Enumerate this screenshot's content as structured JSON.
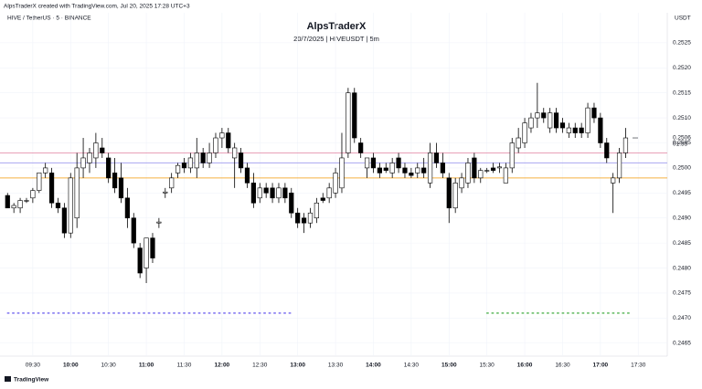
{
  "header": {
    "credit": "AlpsTraderX created with TradingView.com, Jul 20, 2025 17:28 UTC+3",
    "symbol": "HIVE / TetherUS · 5 · BINANCE",
    "currency": "USDT",
    "logo": "TradingView"
  },
  "chart_data": {
    "type": "candlestick",
    "title": "AlpsTraderX",
    "subtitle": "20/7/2025 | HIVEUSDT | 5m",
    "x": [
      550,
      555,
      560,
      565,
      570,
      575,
      580,
      585,
      590,
      595,
      600,
      605,
      610,
      615,
      620,
      625,
      630,
      635,
      640,
      645,
      650,
      655,
      660,
      665,
      670,
      675,
      680,
      685,
      690,
      695,
      700,
      705,
      710,
      715,
      720,
      725,
      730,
      735,
      740,
      745,
      750,
      755,
      760,
      765,
      770,
      775,
      780,
      785,
      790,
      795,
      800,
      805,
      810,
      815,
      820,
      825,
      830,
      835,
      840,
      845,
      850,
      855,
      860,
      865,
      870,
      875,
      880,
      885,
      890,
      895,
      900,
      905,
      910,
      915,
      920,
      925,
      930,
      935,
      940,
      945,
      950,
      955,
      960,
      965,
      970,
      975,
      980,
      985,
      990,
      995,
      1000,
      1005,
      1010,
      1015,
      1020,
      1025,
      1030,
      1035,
      1040
    ],
    "open": [
      0.24945,
      0.2492,
      0.2492,
      0.24935,
      0.2494,
      0.24955,
      0.2499,
      0.2499,
      0.2493,
      0.2492,
      0.2487,
      0.249,
      0.25,
      0.2501,
      0.2502,
      0.2504,
      0.2502,
      0.2499,
      0.2498,
      0.2494,
      0.249,
      0.2484,
      0.248,
      0.2486,
      0.2489,
      0.2495,
      0.2496,
      0.2499,
      0.2501,
      0.25,
      0.25,
      0.2503,
      0.2501,
      0.2503,
      0.2506,
      0.2507,
      0.2502,
      0.2503,
      0.25,
      0.2497,
      0.2494,
      0.2496,
      0.2496,
      0.2494,
      0.2496,
      0.2495,
      0.2491,
      0.249,
      0.2489,
      0.249,
      0.2494,
      0.2494,
      0.2495,
      0.2496,
      0.2503,
      0.2515,
      0.2505,
      0.25,
      0.2502,
      0.25,
      0.25,
      0.2499,
      0.2502,
      0.25,
      0.2499,
      0.2499,
      0.25,
      0.2497,
      0.2503,
      0.2501,
      0.2498,
      0.2492,
      0.2496,
      0.2497,
      0.2502,
      0.2498,
      0.24995,
      0.25,
      0.25,
      0.2497,
      0.25,
      0.2504,
      0.2505,
      0.2508,
      0.251,
      0.2511,
      0.2508,
      0.2511,
      0.2509,
      0.2507,
      0.2508,
      0.2508,
      0.2507,
      0.2512,
      0.251,
      0.2505,
      0.2497,
      0.2498,
      0.2503
    ],
    "high": [
      0.2495,
      0.2493,
      0.2494,
      0.2494,
      0.2496,
      0.2499,
      0.2501,
      0.25,
      0.2494,
      0.2493,
      0.2499,
      0.2503,
      0.2506,
      0.2504,
      0.2507,
      0.2506,
      0.2503,
      0.2502,
      0.2501,
      0.2496,
      0.2491,
      0.2485,
      0.2486,
      0.2487,
      0.249,
      0.2496,
      0.2499,
      0.2501,
      0.2502,
      0.2503,
      0.2506,
      0.2504,
      0.2505,
      0.2507,
      0.2508,
      0.2508,
      0.2505,
      0.2504,
      0.2501,
      0.2499,
      0.2497,
      0.2497,
      0.2497,
      0.2497,
      0.2497,
      0.2496,
      0.2492,
      0.2491,
      0.2492,
      0.2494,
      0.2495,
      0.2497,
      0.25,
      0.2507,
      0.2516,
      0.2516,
      0.2506,
      0.2502,
      0.2503,
      0.2501,
      0.2501,
      0.2502,
      0.2503,
      0.2501,
      0.25,
      0.2501,
      0.2502,
      0.2505,
      0.2505,
      0.2503,
      0.2499,
      0.2498,
      0.2499,
      0.2502,
      0.2503,
      0.25,
      0.25,
      0.2501,
      0.2501,
      0.2501,
      0.2506,
      0.2508,
      0.251,
      0.2511,
      0.2517,
      0.2512,
      0.2512,
      0.2512,
      0.251,
      0.2509,
      0.2509,
      0.2509,
      0.2513,
      0.2513,
      0.2511,
      0.2506,
      0.2499,
      0.2504,
      0.2508
    ],
    "low": [
      0.2492,
      0.2491,
      0.2491,
      0.2493,
      0.2493,
      0.2495,
      0.2498,
      0.2492,
      0.2491,
      0.2486,
      0.2486,
      0.2488,
      0.2498,
      0.2499,
      0.25,
      0.2502,
      0.2497,
      0.2495,
      0.2493,
      0.2488,
      0.2484,
      0.2478,
      0.2477,
      0.2481,
      0.2488,
      0.2494,
      0.2495,
      0.2498,
      0.2499,
      0.2499,
      0.2498,
      0.25,
      0.25,
      0.2502,
      0.2504,
      0.2503,
      0.2496,
      0.2499,
      0.2496,
      0.2492,
      0.2493,
      0.2494,
      0.2493,
      0.2493,
      0.2493,
      0.249,
      0.2488,
      0.2487,
      0.2488,
      0.2489,
      0.2493,
      0.2493,
      0.2494,
      0.2495,
      0.2502,
      0.2505,
      0.2502,
      0.2498,
      0.2499,
      0.2498,
      0.2499,
      0.2498,
      0.2499,
      0.2498,
      0.2498,
      0.2498,
      0.2498,
      0.2496,
      0.25,
      0.2498,
      0.2489,
      0.2491,
      0.2495,
      0.2496,
      0.2497,
      0.2497,
      0.2499,
      0.2499,
      0.2499,
      0.2497,
      0.2499,
      0.2503,
      0.2504,
      0.2507,
      0.2508,
      0.2509,
      0.2507,
      0.2507,
      0.2507,
      0.2506,
      0.2506,
      0.2506,
      0.2506,
      0.2509,
      0.2504,
      0.2501,
      0.2491,
      0.2497,
      0.2502
    ],
    "close": [
      0.2492,
      0.24925,
      0.24935,
      0.24935,
      0.24955,
      0.2499,
      0.25,
      0.2493,
      0.2492,
      0.2487,
      0.2498,
      0.25,
      0.2502,
      0.2503,
      0.2505,
      0.2503,
      0.2498,
      0.2496,
      0.2494,
      0.249,
      0.2485,
      0.2479,
      0.2486,
      0.2482,
      0.24892,
      0.24952,
      0.2498,
      0.25005,
      0.25,
      0.2502,
      0.2503,
      0.2501,
      0.2503,
      0.2506,
      0.2507,
      0.2504,
      0.2504,
      0.25,
      0.2497,
      0.2493,
      0.2496,
      0.2495,
      0.2494,
      0.2496,
      0.2494,
      0.2491,
      0.2489,
      0.2489,
      0.2491,
      0.2493,
      0.24935,
      0.2496,
      0.2499,
      0.2502,
      0.2515,
      0.2506,
      0.2503,
      0.2502,
      0.25,
      0.2499,
      0.24995,
      0.2501,
      0.25,
      0.2499,
      0.24985,
      0.25,
      0.2499,
      0.2503,
      0.2501,
      0.2499,
      0.2492,
      0.2497,
      0.2498,
      0.2501,
      0.2498,
      0.24995,
      0.24995,
      0.24995,
      0.25002,
      0.25,
      0.2505,
      0.2506,
      0.2509,
      0.251,
      0.2511,
      0.251,
      0.2511,
      0.2508,
      0.2508,
      0.2508,
      0.2507,
      0.2507,
      0.2512,
      0.251,
      0.2505,
      0.2502,
      0.2498,
      0.2503,
      0.2506
    ],
    "bull_color": "#ffffff",
    "bear_color": "#000000",
    "outline_color": "#000000",
    "xlim": [
      544,
      1073
    ],
    "xticks": [
      {
        "value": 570,
        "label": "09:30"
      },
      {
        "value": 600,
        "label": "10:00"
      },
      {
        "value": 630,
        "label": "10:30"
      },
      {
        "value": 660,
        "label": "11:00"
      },
      {
        "value": 690,
        "label": "11:30"
      },
      {
        "value": 720,
        "label": "12:00"
      },
      {
        "value": 750,
        "label": "12:30"
      },
      {
        "value": 780,
        "label": "13:00"
      },
      {
        "value": 810,
        "label": "13:30"
      },
      {
        "value": 840,
        "label": "14:00"
      },
      {
        "value": 870,
        "label": "14:30"
      },
      {
        "value": 900,
        "label": "15:00"
      },
      {
        "value": 930,
        "label": "15:30"
      },
      {
        "value": 960,
        "label": "16:00"
      },
      {
        "value": 990,
        "label": "16:30"
      },
      {
        "value": 1020,
        "label": "17:00"
      },
      {
        "value": 1050,
        "label": "17:30"
      }
    ],
    "ylim": [
      0.24624,
      0.2531
    ],
    "yticks": [
      0.2465,
      {
        "value": 0.247,
        "label": "0.2470"
      },
      0.2475,
      {
        "value": 0.248,
        "label": "0.2480"
      },
      0.2485,
      {
        "value": 0.249,
        "label": "0.2490"
      },
      0.2495,
      {
        "value": 0.25,
        "label": "0.2500"
      },
      0.2505,
      {
        "value": 0.251,
        "label": "0.2510"
      },
      0.2515,
      {
        "value": 0.252,
        "label": "0.2520"
      },
      0.2525
    ],
    "grid": true,
    "levels": [
      {
        "value": 0.2503,
        "color": "#e8a0b8"
      },
      {
        "value": 0.2501,
        "color": "#a9a6f0"
      },
      {
        "value": 0.2498,
        "color": "#f5b041"
      }
    ],
    "dotted": [
      {
        "value": 0.2471,
        "color": "#7b6ff0",
        "x": [
          550,
          775
        ]
      },
      {
        "value": 0.2471,
        "color": "#5cb85c",
        "x": [
          930,
          1045
        ]
      }
    ],
    "last_price": {
      "value": 0.2506,
      "label": "0.2506"
    },
    "countdown": "01:55"
  }
}
